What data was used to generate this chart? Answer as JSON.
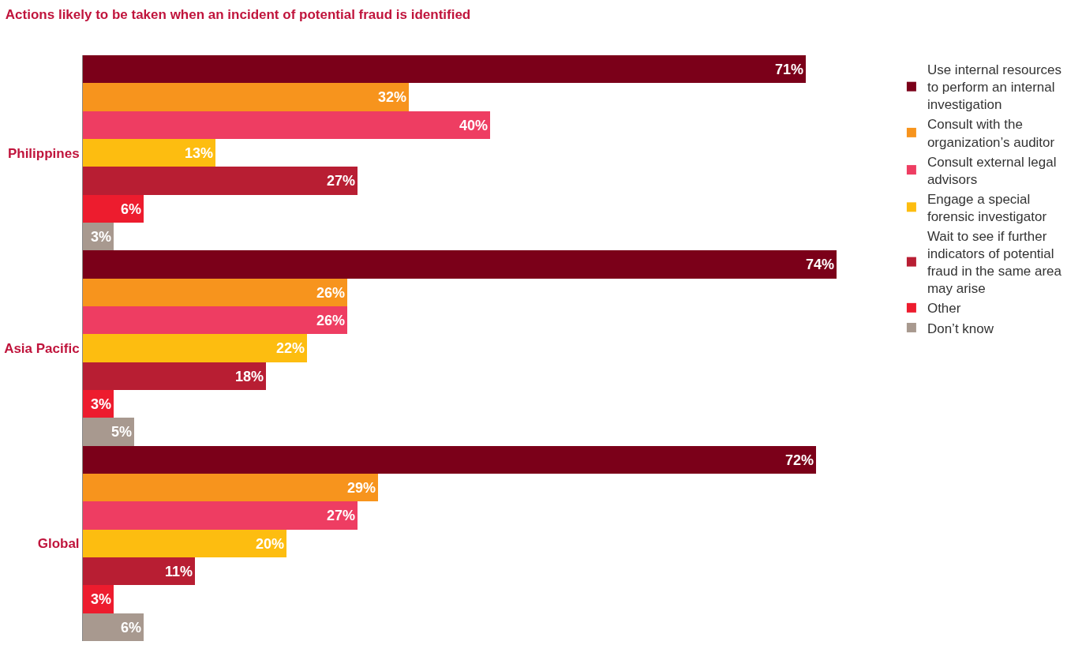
{
  "chart_data": {
    "type": "bar",
    "orientation": "horizontal",
    "title": "Actions likely to be taken when an incident of potential fraud is identified",
    "categories": [
      "Philippines",
      "Asia Pacific",
      "Global"
    ],
    "series": [
      {
        "name": "Use internal resources to perform an internal investigation",
        "color": "#7b0019",
        "values": [
          71,
          74,
          72
        ],
        "value_labels": [
          "71%",
          "74%",
          "72%"
        ]
      },
      {
        "name": "Consult with the organization’s auditor",
        "color": "#f7941d",
        "values": [
          32,
          26,
          29
        ],
        "value_labels": [
          "32%",
          "26%",
          "29%"
        ]
      },
      {
        "name": "Consult external legal advisors",
        "color": "#ee3d62",
        "values": [
          40,
          26,
          27
        ],
        "value_labels": [
          "40%",
          "26%",
          "27%"
        ]
      },
      {
        "name": "Engage a special forensic investigator",
        "color": "#fdbd10",
        "values": [
          13,
          22,
          20
        ],
        "value_labels": [
          "13%",
          "22%",
          "20%"
        ]
      },
      {
        "name": "Wait to see if further indicators of potential fraud in the same area may arise",
        "color": "#b81e33",
        "values": [
          27,
          18,
          11
        ],
        "value_labels": [
          "27%",
          "18%",
          "11%"
        ]
      },
      {
        "name": "Other",
        "color": "#ed1c2e",
        "values": [
          6,
          3,
          3
        ],
        "value_labels": [
          "6%",
          "3%",
          "3%"
        ]
      },
      {
        "name": "Don’t know",
        "color": "#a8998f",
        "values": [
          3,
          5,
          6
        ],
        "value_labels": [
          "3%",
          "5%",
          "6%"
        ]
      }
    ],
    "legend": "top right"
  }
}
